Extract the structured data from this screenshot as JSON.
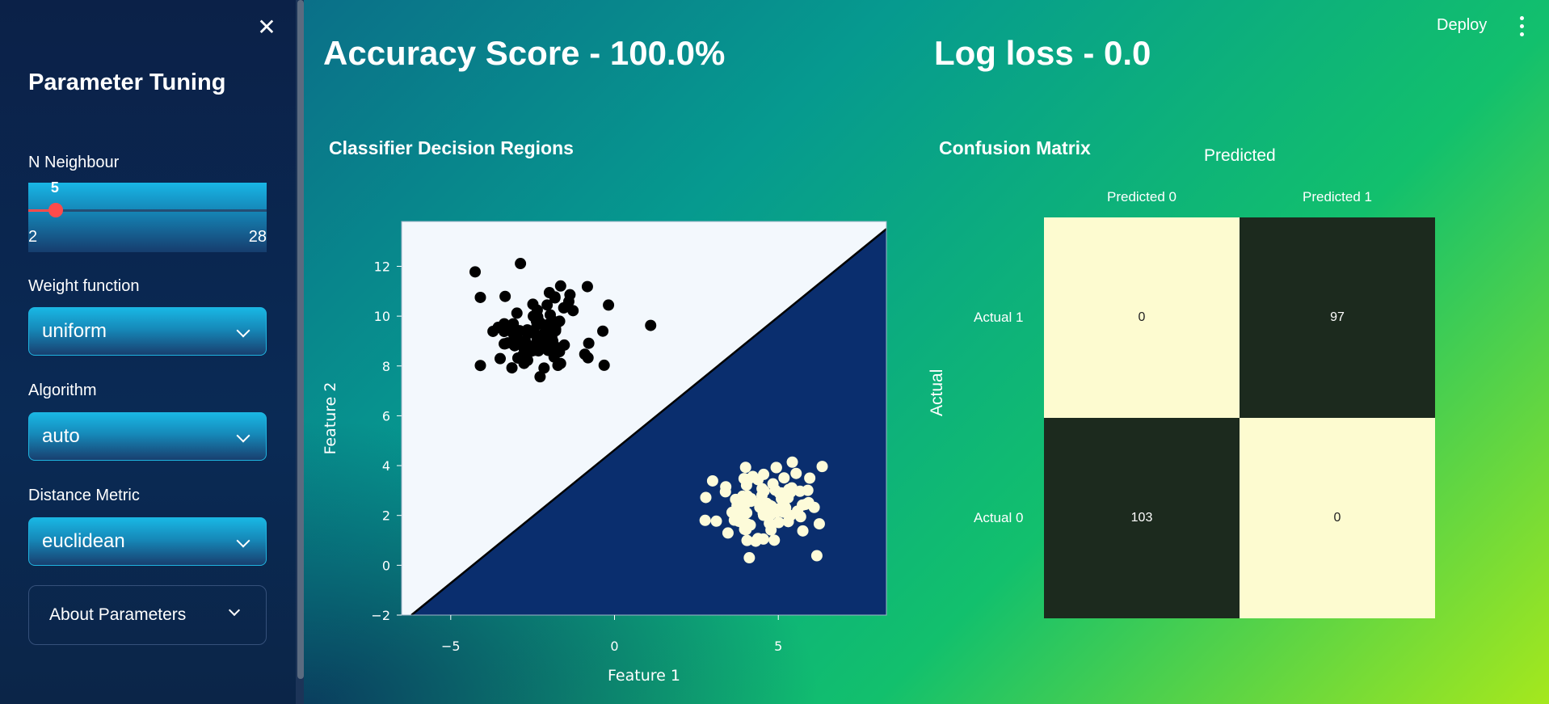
{
  "sidebar": {
    "title": "Parameter Tuning",
    "close_icon": "close-icon",
    "n_neighbour": {
      "label": "N Neighbour",
      "value": "5",
      "min": "2",
      "max": "28",
      "value_fraction": 0.115
    },
    "weight_function": {
      "label": "Weight function",
      "value": "uniform"
    },
    "algorithm": {
      "label": "Algorithm",
      "value": "auto"
    },
    "distance_metric": {
      "label": "Distance Metric",
      "value": "euclidean"
    },
    "about": {
      "label": "About Parameters"
    },
    "accent_color": "#ff4b4b"
  },
  "header": {
    "deploy_label": "Deploy",
    "menu_icon": "kebab-menu-icon"
  },
  "metrics": {
    "accuracy": "Accuracy Score - 100.0%",
    "log_loss": "Log loss - 0.0"
  },
  "decision_chart_title": "Classifier Decision Regions",
  "confusion_title": "Confusion Matrix",
  "chart_data": [
    {
      "type": "scatter",
      "title": "Classifier Decision Regions",
      "xlabel": "Feature 1",
      "ylabel": "Feature 2",
      "xlim": [
        -6.5,
        8.3
      ],
      "ylim": [
        -2,
        13.8
      ],
      "x_ticks": [
        "−5",
        "0",
        "5"
      ],
      "x_tick_values": [
        -5,
        0,
        5
      ],
      "y_ticks": [
        "−2",
        "0",
        "2",
        "4",
        "6",
        "8",
        "10",
        "12"
      ],
      "y_tick_values": [
        -2,
        0,
        2,
        4,
        6,
        8,
        10,
        12
      ],
      "grid": false,
      "decision_boundary": [
        [
          -6.2,
          -2
        ],
        [
          8.3,
          13.5
        ]
      ],
      "region_colors": {
        "upper": "#f3f8fd",
        "lower": "#0a2e6e"
      },
      "series": [
        {
          "color": "#000000",
          "center": [
            -2.4,
            9.3
          ],
          "spread": [
            0.9,
            0.85
          ],
          "count": 103
        },
        {
          "color": "#fdfbd9",
          "center": [
            4.7,
            2.4
          ],
          "spread": [
            0.85,
            0.85
          ],
          "count": 97
        }
      ]
    },
    {
      "type": "heatmap",
      "title": "Confusion Matrix",
      "xlabel": "Predicted",
      "ylabel": "Actual",
      "columns": [
        "Predicted 0",
        "Predicted 1"
      ],
      "rows": [
        "Actual 1",
        "Actual 0"
      ],
      "values": [
        [
          0,
          97
        ],
        [
          103,
          0
        ]
      ],
      "colors": {
        "low": "#fdfbd0",
        "high": "#1c2a1e"
      }
    }
  ]
}
